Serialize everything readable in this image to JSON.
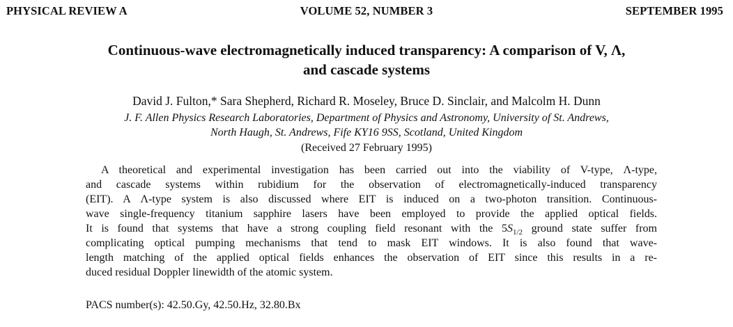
{
  "header": {
    "journal": "PHYSICAL REVIEW A",
    "volume": "VOLUME 52, NUMBER 3",
    "date": "SEPTEMBER 1995"
  },
  "title": {
    "line1": "Continuous-wave electromagnetically induced transparency: A comparison of V, Λ,",
    "line2": "and cascade systems"
  },
  "authors": "David J. Fulton,* Sara Shepherd, Richard R. Moseley, Bruce D. Sinclair, and Malcolm H. Dunn",
  "affiliation": {
    "line1": "J. F. Allen Physics Research Laboratories, Department of Physics and Astronomy, University of St. Andrews,",
    "line2": "North Haugh, St. Andrews, Fife KY16 9SS, Scotland, United Kingdom"
  },
  "received": "(Received 27 February 1995)",
  "abstract": {
    "line1": "A theoretical and experimental investigation has been carried out into the viability of V-type, Λ-type,",
    "line2": "and cascade systems within rubidium for the observation of electromagnetically-induced transparency",
    "line3": "(EIT).  A Λ-type system is also discussed where EIT is induced on a two-photon transition.  Continuous-",
    "line4": "wave single-frequency titanium sapphire lasers have been employed to provide the applied optical fields.",
    "line5_pre": "It is found that systems that have a strong coupling field resonant with the 5",
    "line5_S": "S",
    "line5_sub": "1/2",
    "line5_post": " ground state suffer from",
    "line6": "complicating optical pumping mechanisms that tend to mask EIT windows.  It is also found that wave-",
    "line7": "length matching of the applied optical fields enhances the observation of EIT since this results in a re-",
    "line8": "duced residual Doppler linewidth of the atomic system."
  },
  "pacs": "PACS number(s): 42.50.Gy, 42.50.Hz, 32.80.Bx"
}
